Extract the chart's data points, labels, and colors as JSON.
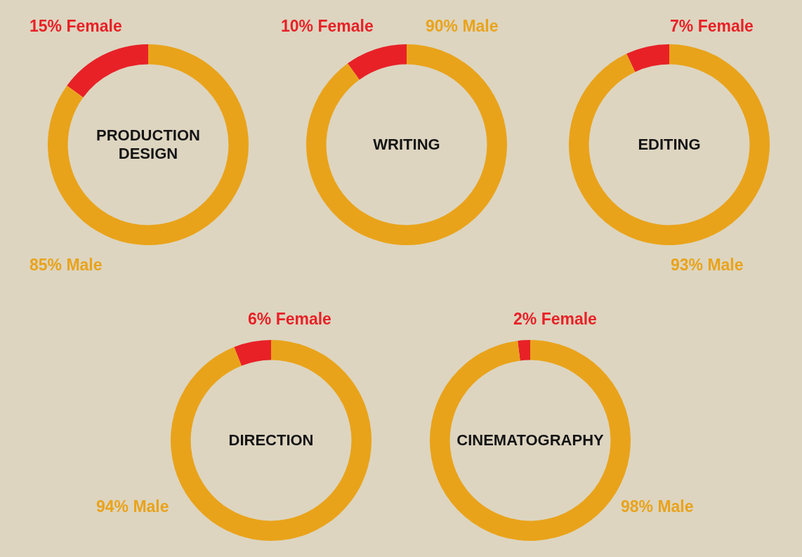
{
  "chart_data": [
    {
      "type": "donut",
      "title": "PRODUCTION DESIGN",
      "categories": [
        "Female",
        "Male"
      ],
      "values": [
        15,
        85
      ],
      "colors": [
        "#e82127",
        "#e9a31a"
      ],
      "value_labels": [
        "15%",
        "85%"
      ]
    },
    {
      "type": "donut",
      "title": "WRITING",
      "categories": [
        "Female",
        "Male"
      ],
      "values": [
        10,
        90
      ],
      "colors": [
        "#e82127",
        "#e9a31a"
      ],
      "value_labels": [
        "10%",
        "90%"
      ]
    },
    {
      "type": "donut",
      "title": "EDITING",
      "categories": [
        "Female",
        "Male"
      ],
      "values": [
        7,
        93
      ],
      "colors": [
        "#e82127",
        "#e9a31a"
      ],
      "value_labels": [
        "7%",
        "93%"
      ]
    },
    {
      "type": "donut",
      "title": "DIRECTION",
      "categories": [
        "Female",
        "Male"
      ],
      "values": [
        6,
        94
      ],
      "colors": [
        "#e82127",
        "#e9a31a"
      ],
      "value_labels": [
        "6%",
        "94%"
      ]
    },
    {
      "type": "donut",
      "title": "CINEMATOGRAPHY",
      "categories": [
        "Female",
        "Male"
      ],
      "values": [
        2,
        98
      ],
      "colors": [
        "#e82127",
        "#e9a31a"
      ],
      "value_labels": [
        "2%",
        "98%"
      ]
    }
  ]
}
